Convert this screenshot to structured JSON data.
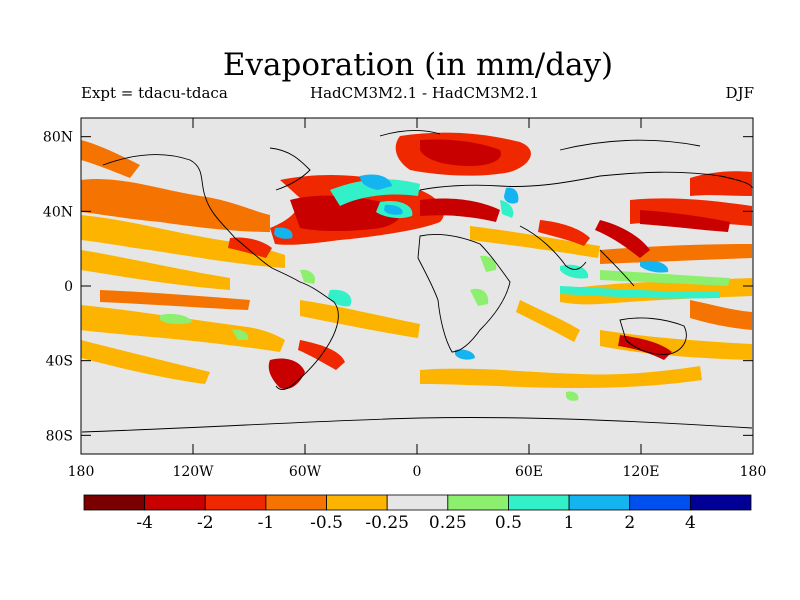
{
  "header": {
    "title": "Evaporation (in mm/day)",
    "left": "Expt = tdacu-tdaca",
    "center": "HadCM3M2.1 - HadCM3M2.1",
    "right": "DJF"
  },
  "axes": {
    "lat_ticks": [
      "80N",
      "40N",
      "0",
      "40S",
      "80S"
    ],
    "lat_values": [
      80,
      40,
      0,
      -40,
      -80
    ],
    "lon_ticks": [
      "180",
      "120W",
      "60W",
      "0",
      "60E",
      "120E",
      "180"
    ],
    "lon_values": [
      -180,
      -120,
      -60,
      0,
      60,
      120,
      180
    ],
    "lat_range": [
      -90,
      90
    ],
    "lon_range": [
      -180,
      180
    ]
  },
  "colorbar": {
    "colors": [
      "#7a0000",
      "#c80000",
      "#f02800",
      "#f57300",
      "#fdb400",
      "#e6e6e6",
      "#8cf06e",
      "#32f0c8",
      "#14b4f0",
      "#0050f0",
      "#000096"
    ],
    "labels": [
      "-4",
      "-2",
      "-1",
      "-0.5",
      "-0.25",
      "0.25",
      "0.5",
      "1",
      "2",
      "4"
    ]
  },
  "colors": {
    "background": "#e6e6e6",
    "coast": "#000000"
  }
}
